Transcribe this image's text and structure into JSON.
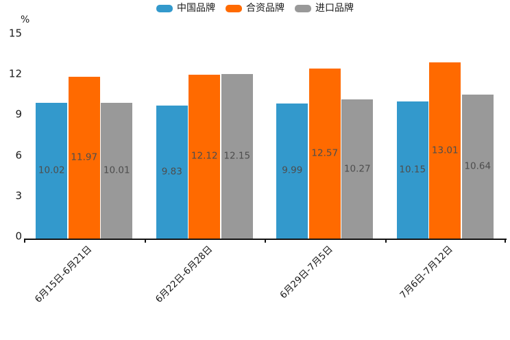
{
  "chart_data": {
    "type": "bar",
    "title": "",
    "unit_label": "%",
    "categories": [
      "6月15日-6月21日",
      "6月22日-6月28日",
      "6月29日-7月5日",
      "7月6日-7月12日"
    ],
    "series": [
      {
        "name": "中国品牌",
        "color": "#3399CC",
        "values": [
          10.02,
          9.83,
          9.99,
          10.15
        ]
      },
      {
        "name": "合资品牌",
        "color": "#FF6A00",
        "values": [
          11.97,
          12.12,
          12.57,
          13.01
        ]
      },
      {
        "name": "进口品牌",
        "color": "#999999",
        "values": [
          10.01,
          12.15,
          10.27,
          10.64
        ]
      }
    ],
    "y_ticks": [
      0,
      3,
      6,
      9,
      12,
      15
    ],
    "ylim": [
      0,
      15
    ],
    "legend_position": "top-center",
    "grid": false,
    "value_labels": "inside-bar-centered",
    "value_label_color": "#4d4d4d",
    "axis_color": "#111111",
    "x_label_rotation_deg": 45
  }
}
